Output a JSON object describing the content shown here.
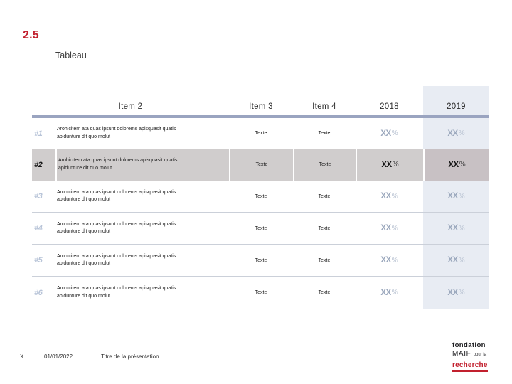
{
  "slide": {
    "section_number": "2.5",
    "title": "Tableau"
  },
  "table": {
    "headers": [
      "Item 2",
      "Item 3",
      "Item 4",
      "2018",
      "2019"
    ],
    "rows": [
      {
        "num": "#1",
        "description": "Arohicitem ata quas ipsunt dolorems apisquasit quatis apidunture dit quo molut",
        "item3": "Texte",
        "item4": "Texte",
        "val2018": "XX",
        "unit2018": "%",
        "val2019": "XX",
        "unit2019": "%",
        "highlighted": false
      },
      {
        "num": "#2",
        "description": "Arohicitem ata quas ipsunt dolorems apisquasit quatis apidunture dit quo molut",
        "item3": "Texte",
        "item4": "Texte",
        "val2018": "XX",
        "unit2018": "%",
        "val2019": "XX",
        "unit2019": "%",
        "highlighted": true
      },
      {
        "num": "#3",
        "description": "Arohicitem ata quas ipsunt dolorems apisquasit quatis apidunture dit quo molut",
        "item3": "Texte",
        "item4": "Texte",
        "val2018": "XX",
        "unit2018": "%",
        "val2019": "XX",
        "unit2019": "%",
        "highlighted": false
      },
      {
        "num": "#4",
        "description": "Arohicitem ata quas ipsunt dolorems apisquasit quatis apidunture dit quo molut",
        "item3": "Texte",
        "item4": "Texte",
        "val2018": "XX",
        "unit2018": "%",
        "val2019": "XX",
        "unit2019": "%",
        "highlighted": false
      },
      {
        "num": "#5",
        "description": "Arohicitem ata quas ipsunt dolorems apisquasit quatis apidunture dit quo molut",
        "item3": "Texte",
        "item4": "Texte",
        "val2018": "XX",
        "unit2018": "%",
        "val2019": "XX",
        "unit2019": "%",
        "highlighted": false
      },
      {
        "num": "#6",
        "description": "Arohicitem ata quas ipsunt dolorems apisquasit quatis apidunture dit quo molut",
        "item3": "Texte",
        "item4": "Texte",
        "val2018": "XX",
        "unit2018": "%",
        "val2019": "XX",
        "unit2019": "%",
        "highlighted": false
      }
    ]
  },
  "footer": {
    "page_number": "X",
    "date": "01/01/2022",
    "presentation_title": "Titre de la présentation"
  },
  "logo": {
    "line1": "fondation",
    "line2_main": "MAIF",
    "line2_small": "pour la",
    "line3": "recherche"
  },
  "colors": {
    "accent_red": "#c2202e",
    "header_rule": "#9aa4c0",
    "column_highlight_bg": "#e8ecf3",
    "row_highlight_bg": "#d0cdcd",
    "muted_blue_text": "#b8c4d8",
    "value_gray_text": "#9ba8bd"
  }
}
